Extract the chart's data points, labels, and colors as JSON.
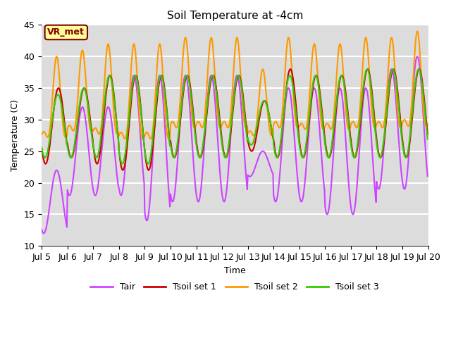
{
  "title": "Soil Temperature at -4cm",
  "xlabel": "Time",
  "ylabel": "Temperature (C)",
  "ylim": [
    10,
    45
  ],
  "series_colors": {
    "Tair": "#cc44ff",
    "Tsoil set 1": "#cc0000",
    "Tsoil set 2": "#ff9900",
    "Tsoil set 3": "#33cc00"
  },
  "legend_labels": [
    "Tair",
    "Tsoil set 1",
    "Tsoil set 2",
    "Tsoil set 3"
  ],
  "annotation_text": "VR_met",
  "annotation_color": "#800000",
  "annotation_bg": "#ffff99",
  "background_color": "#dcdcdc",
  "grid_color": "white",
  "tick_labels": [
    "Jul 5",
    "Jul 6",
    "Jul 7",
    "Jul 8",
    "Jul 9",
    "Jul 10",
    "Jul 11",
    "Jul 12",
    "Jul 13",
    "Jul 14",
    "Jul 15",
    "Jul 16",
    "Jul 17",
    "Jul 18",
    "Jul 19",
    "Jul 20"
  ],
  "tick_positions": [
    5,
    6,
    7,
    8,
    9,
    10,
    11,
    12,
    13,
    14,
    15,
    16,
    17,
    18,
    19,
    20
  ],
  "yticks": [
    10,
    15,
    20,
    25,
    30,
    35,
    40,
    45
  ]
}
